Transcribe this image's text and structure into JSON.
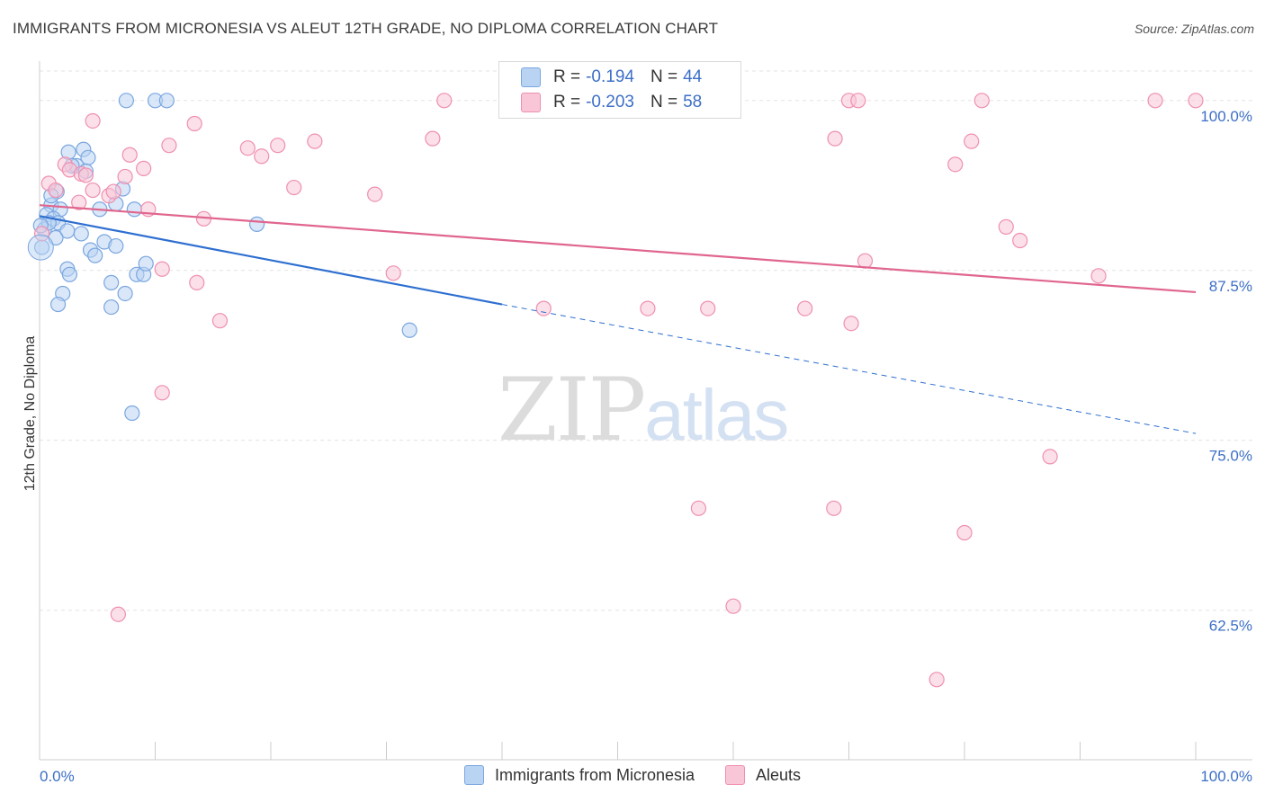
{
  "title": "IMMIGRANTS FROM MICRONESIA VS ALEUT 12TH GRADE, NO DIPLOMA CORRELATION CHART",
  "source": "Source: ZipAtlas.com",
  "watermark": {
    "zip": "ZIP",
    "atlas": "atlas"
  },
  "legend_stats": [
    {
      "r_label": "R =",
      "r_value": "-0.194",
      "n_label": "N =",
      "n_value": "44"
    },
    {
      "r_label": "R =",
      "r_value": "-0.203",
      "n_label": "N =",
      "n_value": "58"
    }
  ],
  "chart_data": {
    "type": "scatter",
    "title": "IMMIGRANTS FROM MICRONESIA VS ALEUT 12TH GRADE, NO DIPLOMA CORRELATION CHART",
    "xlabel": "",
    "ylabel": "12th Grade, No Diploma",
    "xlim": [
      0,
      100
    ],
    "ylim": [
      51.5,
      102.5
    ],
    "x_tick_labels": [
      "0.0%",
      "100.0%"
    ],
    "y_ticks": [
      100.0,
      87.5,
      75.0,
      62.5
    ],
    "y_tick_labels": [
      "100.0%",
      "87.5%",
      "75.0%",
      "62.5%"
    ],
    "grid": true,
    "legend_position": "top-center",
    "colors": {
      "micronesia": "#7aa6e0",
      "micronesia_fill": "#b9d3f3",
      "aleut": "#ef8fb0",
      "aleut_fill": "#f8c6d7",
      "micronesia_line": "#2e6fd0",
      "aleut_line": "#e0668e",
      "tick_label": "#3d6fc6"
    },
    "series": [
      {
        "name": "Immigrants from Micronesia",
        "r": -0.194,
        "n": 44,
        "trend": {
          "x": [
            0,
            40
          ],
          "y": [
            91.5,
            85.0
          ],
          "dashed_to": [
            100,
            75.5
          ]
        },
        "points": [
          [
            7.5,
            100
          ],
          [
            10,
            100
          ],
          [
            11,
            100
          ],
          [
            2.5,
            96.2
          ],
          [
            3.8,
            96.4
          ],
          [
            4.2,
            95.8
          ],
          [
            3.2,
            95.2
          ],
          [
            4.0,
            94.8
          ],
          [
            1.5,
            93.3
          ],
          [
            7.2,
            93.5
          ],
          [
            1.0,
            92.3
          ],
          [
            1.8,
            92.0
          ],
          [
            5.2,
            92.0
          ],
          [
            8.2,
            92.0
          ],
          [
            6.6,
            92.4
          ],
          [
            0.6,
            91.6
          ],
          [
            1.2,
            91.3
          ],
          [
            1.6,
            91.0
          ],
          [
            0.4,
            90.5
          ],
          [
            2.4,
            90.4
          ],
          [
            3.6,
            90.2
          ],
          [
            18.8,
            90.9
          ],
          [
            1.4,
            89.9
          ],
          [
            5.6,
            89.6
          ],
          [
            6.6,
            89.3
          ],
          [
            4.4,
            89.0
          ],
          [
            4.8,
            88.6
          ],
          [
            2.4,
            87.6
          ],
          [
            2.6,
            87.2
          ],
          [
            8.4,
            87.2
          ],
          [
            9.0,
            87.2
          ],
          [
            9.2,
            88.0
          ],
          [
            6.2,
            86.6
          ],
          [
            7.4,
            85.8
          ],
          [
            2.0,
            85.8
          ],
          [
            1.6,
            85.0
          ],
          [
            6.2,
            84.8
          ],
          [
            32,
            83.1
          ],
          [
            8.0,
            77.0
          ],
          [
            0.2,
            89.2
          ],
          [
            0.8,
            91.0
          ],
          [
            2.8,
            95.2
          ],
          [
            0.1,
            90.8
          ],
          [
            1.0,
            93.0
          ]
        ]
      },
      {
        "name": "Aleuts",
        "r": -0.203,
        "n": 58,
        "trend": {
          "x": [
            0,
            100
          ],
          "y": [
            92.3,
            85.9
          ]
        },
        "points": [
          [
            35,
            100
          ],
          [
            47.5,
            100
          ],
          [
            56.5,
            100
          ],
          [
            70.0,
            100
          ],
          [
            70.8,
            100
          ],
          [
            81.5,
            100
          ],
          [
            96.5,
            100
          ],
          [
            100,
            100
          ],
          [
            4.6,
            98.5
          ],
          [
            13.4,
            98.3
          ],
          [
            7.8,
            96.0
          ],
          [
            11.2,
            96.7
          ],
          [
            18.0,
            96.5
          ],
          [
            20.6,
            96.7
          ],
          [
            19.2,
            95.9
          ],
          [
            23.8,
            97.0
          ],
          [
            34.0,
            97.2
          ],
          [
            68.8,
            97.2
          ],
          [
            80.6,
            97.0
          ],
          [
            79.2,
            95.3
          ],
          [
            2.2,
            95.3
          ],
          [
            2.6,
            94.9
          ],
          [
            3.6,
            94.6
          ],
          [
            9.0,
            95.0
          ],
          [
            7.4,
            94.4
          ],
          [
            4.0,
            94.5
          ],
          [
            0.8,
            93.9
          ],
          [
            1.4,
            93.4
          ],
          [
            4.6,
            93.4
          ],
          [
            6.0,
            93.0
          ],
          [
            6.4,
            93.3
          ],
          [
            22.0,
            93.6
          ],
          [
            29.0,
            93.1
          ],
          [
            3.4,
            92.5
          ],
          [
            9.4,
            92.0
          ],
          [
            14.2,
            91.3
          ],
          [
            0.2,
            90.2
          ],
          [
            83.6,
            90.7
          ],
          [
            84.8,
            89.7
          ],
          [
            71.4,
            88.2
          ],
          [
            10.6,
            87.6
          ],
          [
            13.6,
            86.6
          ],
          [
            30.6,
            87.3
          ],
          [
            91.6,
            87.1
          ],
          [
            15.6,
            83.8
          ],
          [
            43.6,
            84.7
          ],
          [
            52.6,
            84.7
          ],
          [
            57.8,
            84.7
          ],
          [
            66.2,
            84.7
          ],
          [
            70.2,
            83.6
          ],
          [
            10.6,
            78.5
          ],
          [
            87.4,
            73.8
          ],
          [
            57.0,
            70.0
          ],
          [
            68.7,
            70.0
          ],
          [
            80.0,
            68.2
          ],
          [
            6.8,
            62.2
          ],
          [
            60.0,
            62.8
          ],
          [
            77.6,
            57.4
          ]
        ]
      }
    ]
  }
}
